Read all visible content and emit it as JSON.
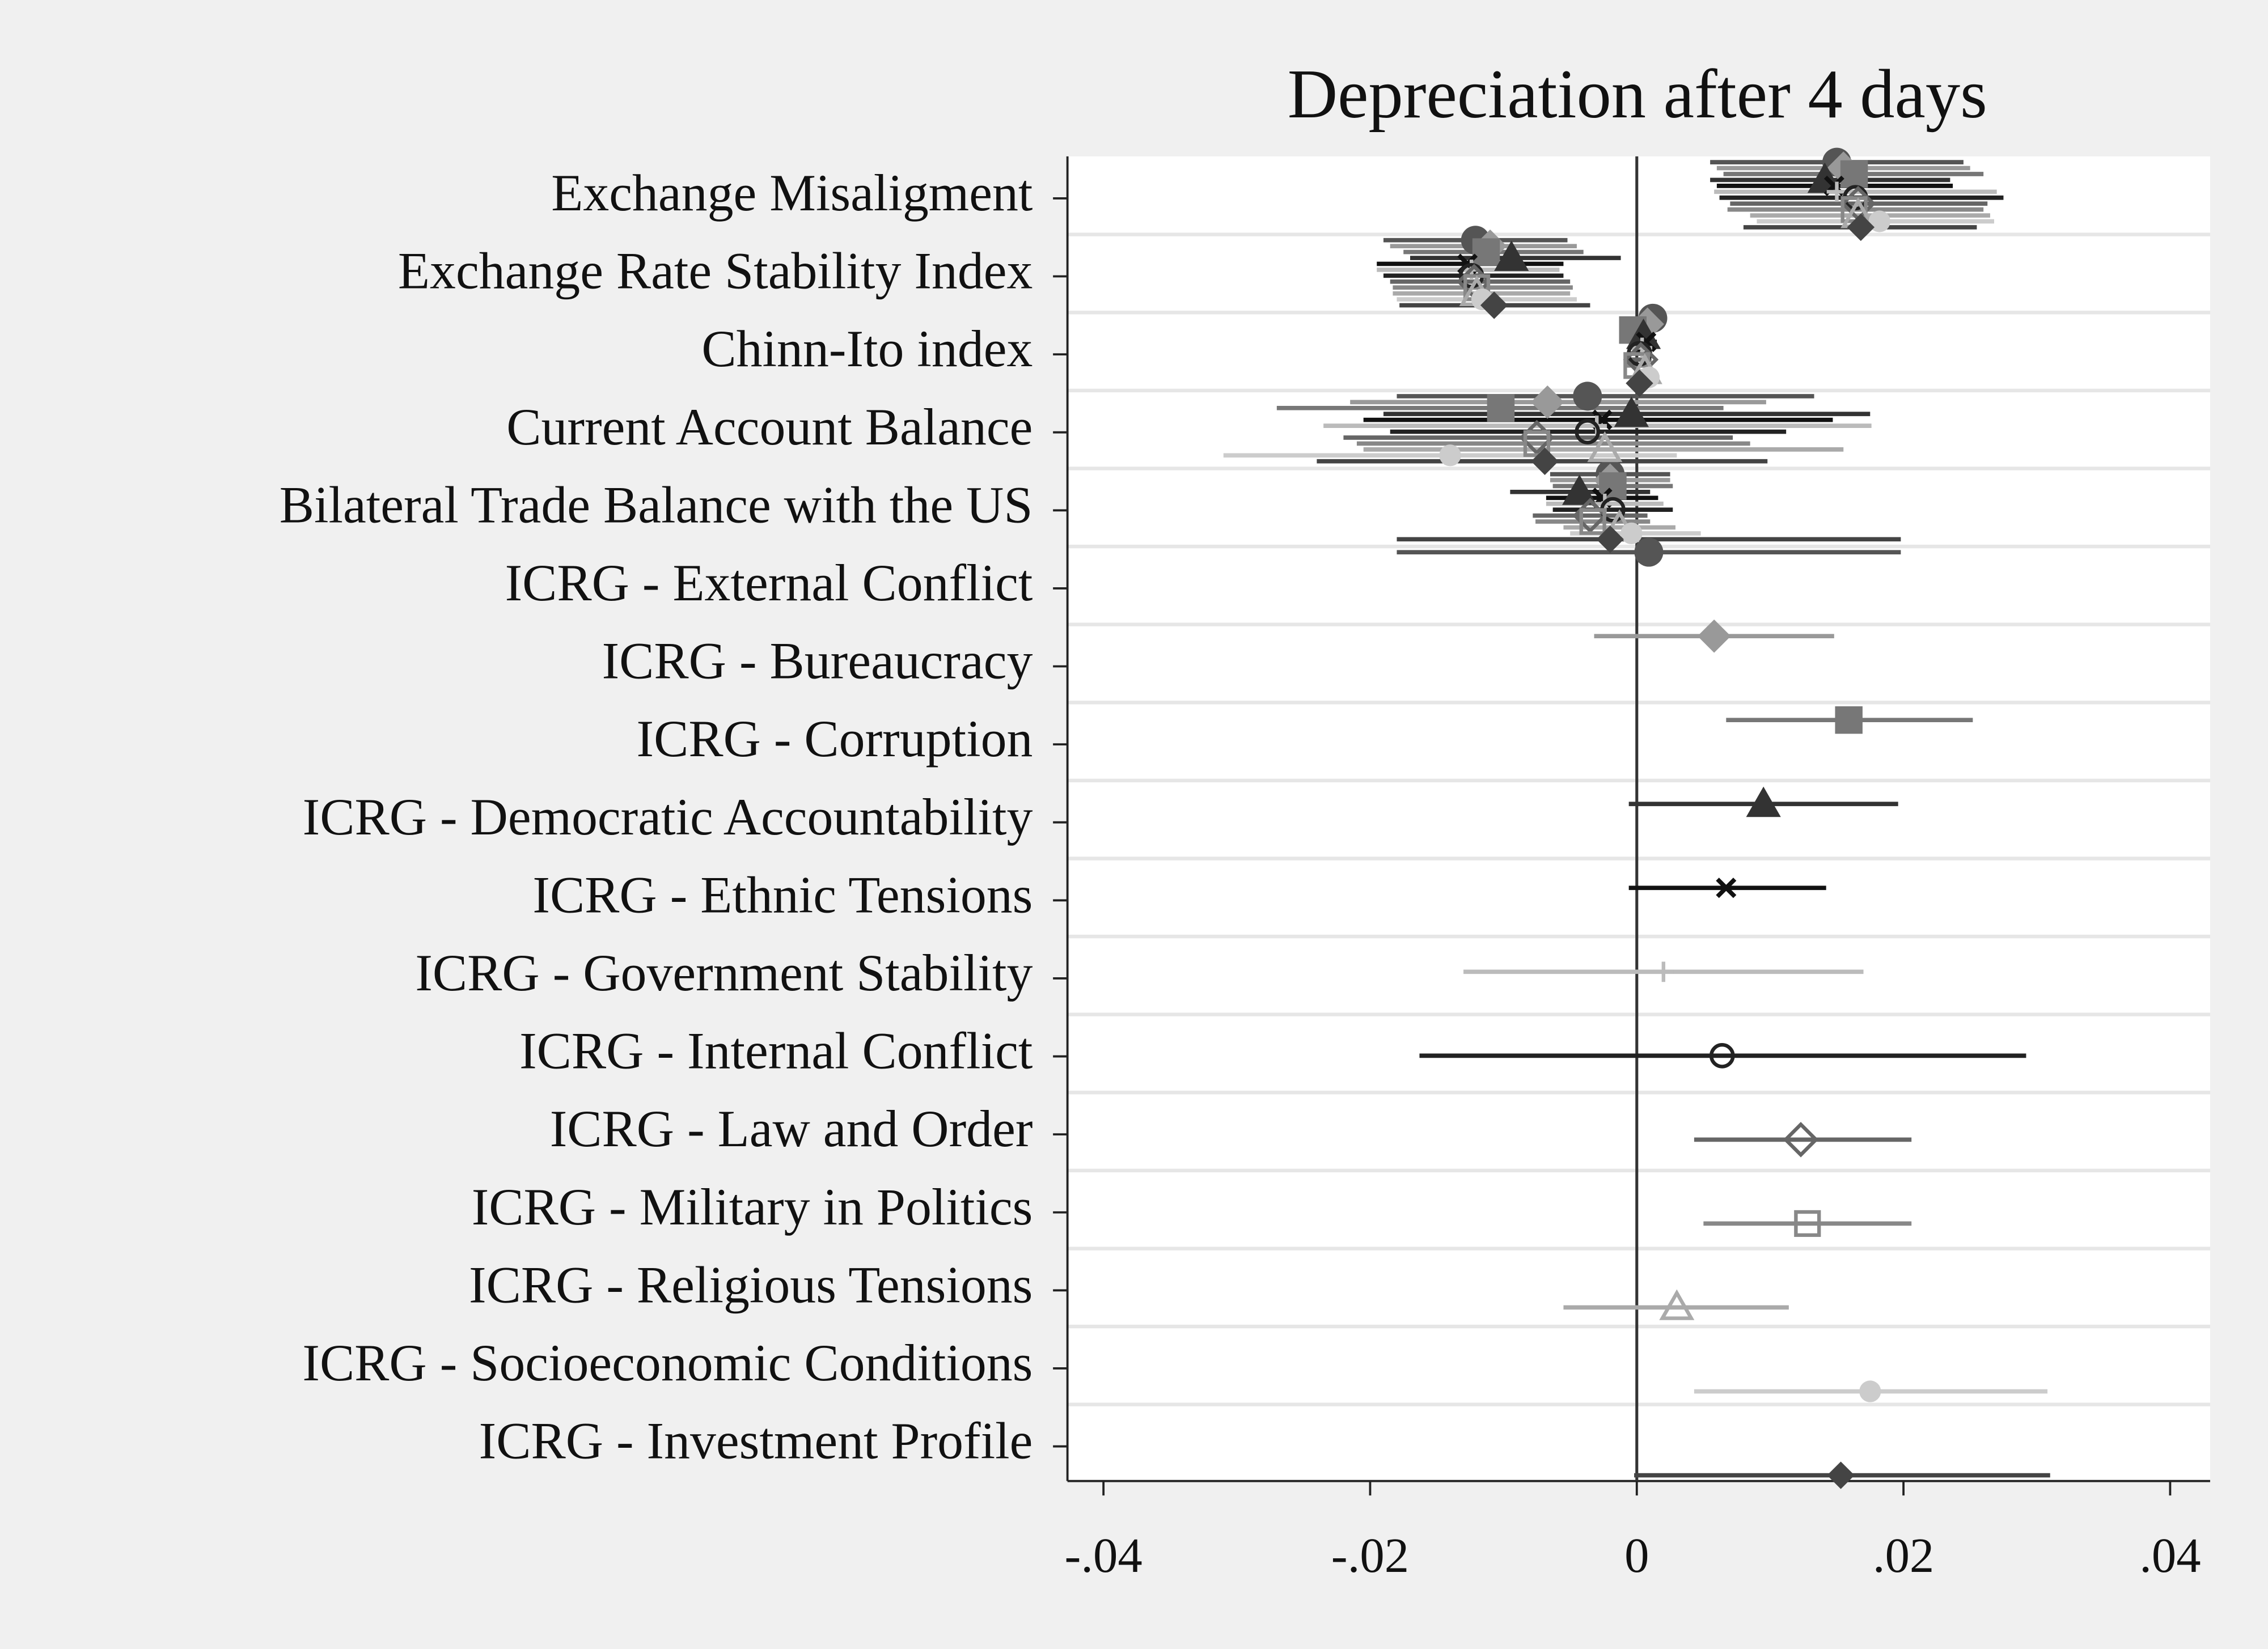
{
  "chart_data": {
    "type": "coefplot",
    "title": "Depreciation after 4 days",
    "categories": [
      "Exchange Misaligment",
      "Exchange Rate Stability Index",
      "Chinn-Ito index",
      "Current Account Balance",
      "Bilateral Trade Balance with the US",
      "ICRG - External Conflict",
      "ICRG - Bureaucracy",
      "ICRG - Corruption",
      "ICRG - Democratic Accountability",
      "ICRG - Ethnic Tensions",
      "ICRG - Government Stability",
      "ICRG - Internal Conflict",
      "ICRG - Law and Order",
      "ICRG - Military in Politics",
      "ICRG - Religious Tensions",
      "ICRG - Socioeconomic Conditions",
      "ICRG - Investment Profile"
    ],
    "xlim": [
      -0.0427,
      0.043
    ],
    "xticks": [
      {
        "value": -0.04,
        "label": "-.04"
      },
      {
        "value": -0.02,
        "label": "-.02"
      },
      0,
      {
        "value": 0.02,
        "label": ".02"
      },
      {
        "value": 0.04,
        "label": ".04"
      }
    ],
    "zero_line": true,
    "grid": true,
    "series": [
      {
        "color": "#555555",
        "marker": "circle",
        "hollow": false,
        "values": [
          0.015,
          -0.0121,
          0.0012,
          -0.0037,
          -0.002,
          0.0009,
          null,
          null,
          null,
          null,
          null,
          null,
          null,
          null,
          null,
          null,
          null
        ],
        "ci_low": [
          0.0055,
          -0.019,
          0.0004,
          -0.018,
          -0.0065,
          -0.018,
          null,
          null,
          null,
          null,
          null,
          null,
          null,
          null,
          null,
          null,
          null
        ],
        "ci_high": [
          0.0245,
          -0.0052,
          0.002,
          0.0133,
          0.0025,
          0.0198,
          null,
          null,
          null,
          null,
          null,
          null,
          null,
          null,
          null,
          null,
          null
        ]
      },
      {
        "color": "#999999",
        "marker": "diamond",
        "hollow": false,
        "values": [
          0.0155,
          -0.011,
          0.0008,
          -0.0067,
          -0.002,
          null,
          0.0058,
          null,
          null,
          null,
          null,
          null,
          null,
          null,
          null,
          null,
          null
        ],
        "ci_low": [
          0.006,
          -0.0185,
          0,
          -0.0215,
          -0.0065,
          null,
          -0.0032,
          null,
          null,
          null,
          null,
          null,
          null,
          null,
          null,
          null,
          null
        ],
        "ci_high": [
          0.025,
          -0.0045,
          0.0016,
          0.0097,
          0.0025,
          null,
          0.0148,
          null,
          null,
          null,
          null,
          null,
          null,
          null,
          null,
          null,
          null
        ]
      },
      {
        "color": "#777777",
        "marker": "square",
        "hollow": false,
        "values": [
          0.0163,
          -0.0113,
          -0.0003,
          -0.0102,
          -0.0018,
          null,
          null,
          0.0159,
          null,
          null,
          null,
          null,
          null,
          null,
          null,
          null,
          null
        ],
        "ci_low": [
          0.0065,
          -0.0175,
          -0.0011,
          -0.027,
          -0.0063,
          null,
          null,
          0.0067,
          null,
          null,
          null,
          null,
          null,
          null,
          null,
          null,
          null
        ],
        "ci_high": [
          0.026,
          -0.004,
          0.0005,
          0.0065,
          0.0027,
          null,
          null,
          0.0252,
          null,
          null,
          null,
          null,
          null,
          null,
          null,
          null,
          null
        ]
      },
      {
        "color": "#333333",
        "marker": "triangle",
        "hollow": false,
        "values": [
          0.0141,
          -0.0094,
          0.0005,
          -0.0004,
          -0.0043,
          null,
          null,
          null,
          0.0095,
          null,
          null,
          null,
          null,
          null,
          null,
          null,
          null
        ],
        "ci_low": [
          0.0055,
          -0.017,
          -0.0003,
          -0.019,
          -0.0095,
          null,
          null,
          null,
          -0.0006,
          null,
          null,
          null,
          null,
          null,
          null,
          null,
          null
        ],
        "ci_high": [
          0.0235,
          -0.0012,
          0.0013,
          0.0175,
          0.001,
          null,
          null,
          null,
          0.0196,
          null,
          null,
          null,
          null,
          null,
          null,
          null,
          null
        ]
      },
      {
        "color": "#111111",
        "marker": "x",
        "hollow": false,
        "values": [
          0.0148,
          -0.0127,
          0.0007,
          -0.0026,
          -0.0026,
          null,
          null,
          null,
          null,
          0.0067,
          null,
          null,
          null,
          null,
          null,
          null,
          null
        ],
        "ci_low": [
          0.006,
          -0.0195,
          -0.0001,
          -0.0205,
          -0.0068,
          null,
          null,
          null,
          null,
          -0.0006,
          null,
          null,
          null,
          null,
          null,
          null,
          null
        ],
        "ci_high": [
          0.0237,
          -0.0055,
          0.0015,
          0.0147,
          0.0016,
          null,
          null,
          null,
          null,
          0.0142,
          null,
          null,
          null,
          null,
          null,
          null,
          null
        ]
      },
      {
        "color": "#bbbbbb",
        "marker": "plus",
        "hollow": false,
        "values": [
          0.015,
          -0.0124,
          0.0004,
          -0.003,
          -0.0024,
          null,
          null,
          null,
          null,
          null,
          0.002,
          null,
          null,
          null,
          null,
          null,
          null
        ],
        "ci_low": [
          0.0058,
          -0.0195,
          -0.0004,
          -0.0235,
          -0.0068,
          null,
          null,
          null,
          null,
          null,
          -0.013,
          null,
          null,
          null,
          null,
          null,
          null
        ],
        "ci_high": [
          0.027,
          -0.0058,
          0.0012,
          0.0176,
          0.002,
          null,
          null,
          null,
          null,
          null,
          0.017,
          null,
          null,
          null,
          null,
          null,
          null
        ]
      },
      {
        "color": "#222222",
        "marker": "circle",
        "hollow": true,
        "values": [
          0.0164,
          -0.0124,
          0.0002,
          -0.0037,
          -0.0018,
          null,
          null,
          null,
          null,
          null,
          null,
          0.0064,
          null,
          null,
          null,
          null,
          null
        ],
        "ci_low": [
          0.0062,
          -0.019,
          -0.0006,
          -0.0185,
          -0.0063,
          null,
          null,
          null,
          null,
          null,
          null,
          -0.0163,
          null,
          null,
          null,
          null,
          null
        ],
        "ci_high": [
          0.0275,
          -0.0055,
          0.001,
          0.0112,
          0.0027,
          null,
          null,
          null,
          null,
          null,
          null,
          0.0292,
          null,
          null,
          null,
          null,
          null
        ]
      },
      {
        "color": "#666666",
        "marker": "diamond",
        "hollow": true,
        "values": [
          0.0166,
          -0.0122,
          0.0003,
          -0.0075,
          -0.0035,
          null,
          null,
          null,
          null,
          null,
          null,
          null,
          0.0123,
          null,
          null,
          null,
          null
        ],
        "ci_low": [
          0.007,
          -0.0185,
          -0.0005,
          -0.022,
          -0.0078,
          null,
          null,
          null,
          null,
          null,
          null,
          null,
          0.0043,
          null,
          null,
          null,
          null
        ],
        "ci_high": [
          0.0263,
          -0.005,
          0.0011,
          0.0072,
          0.0008,
          null,
          null,
          null,
          null,
          null,
          null,
          null,
          0.0206,
          null,
          null,
          null,
          null
        ]
      },
      {
        "color": "#888888",
        "marker": "square",
        "hollow": true,
        "values": [
          0.0163,
          -0.012,
          0,
          -0.0075,
          -0.0033,
          null,
          null,
          null,
          null,
          null,
          null,
          null,
          null,
          0.0128,
          null,
          null,
          null
        ],
        "ci_low": [
          0.0068,
          -0.0183,
          -0.0008,
          -0.021,
          -0.0076,
          null,
          null,
          null,
          null,
          null,
          null,
          null,
          null,
          0.005,
          null,
          null,
          null
        ],
        "ci_high": [
          0.026,
          -0.0048,
          0.0008,
          0.0085,
          0.001,
          null,
          null,
          null,
          null,
          null,
          null,
          null,
          null,
          0.0206,
          null,
          null,
          null
        ]
      },
      {
        "color": "#aaaaaa",
        "marker": "triangle",
        "hollow": true,
        "values": [
          0.0166,
          -0.012,
          0.0006,
          -0.0024,
          -0.0013,
          null,
          null,
          null,
          null,
          null,
          null,
          null,
          null,
          null,
          0.003,
          null,
          null
        ],
        "ci_low": [
          0.0085,
          -0.0183,
          -0.0002,
          -0.0205,
          -0.0055,
          null,
          null,
          null,
          null,
          null,
          null,
          null,
          null,
          null,
          -0.0055,
          null,
          null
        ],
        "ci_high": [
          0.0265,
          -0.005,
          0.0014,
          0.0155,
          0.0029,
          null,
          null,
          null,
          null,
          null,
          null,
          null,
          null,
          null,
          0.0114,
          null,
          null
        ]
      },
      {
        "color": "#cccccc",
        "marker": "dot",
        "hollow": false,
        "values": [
          0.0182,
          -0.0116,
          0.0009,
          -0.014,
          -0.0004,
          null,
          null,
          null,
          null,
          null,
          null,
          null,
          null,
          null,
          null,
          0.0175,
          null
        ],
        "ci_low": [
          0.009,
          -0.018,
          0.0001,
          -0.031,
          -0.005,
          null,
          null,
          null,
          null,
          null,
          null,
          null,
          null,
          null,
          null,
          0.0043,
          null
        ],
        "ci_high": [
          0.0268,
          -0.0045,
          0.0017,
          0.003,
          0.0048,
          null,
          null,
          null,
          null,
          null,
          null,
          null,
          null,
          null,
          null,
          0.0308,
          null
        ]
      },
      {
        "color": "#444444",
        "marker": "diamond",
        "hollow": false,
        "small": true,
        "values": [
          0.0168,
          -0.0107,
          0.0002,
          -0.0069,
          -0.002,
          null,
          null,
          null,
          null,
          null,
          null,
          null,
          null,
          null,
          null,
          null,
          0.0153
        ],
        "ci_low": [
          0.008,
          -0.0178,
          -0.0006,
          -0.024,
          -0.018,
          null,
          null,
          null,
          null,
          null,
          null,
          null,
          null,
          null,
          null,
          null,
          -0.0002
        ],
        "ci_high": [
          0.0255,
          -0.0035,
          0.001,
          0.0098,
          0.0198,
          null,
          null,
          null,
          null,
          null,
          null,
          null,
          null,
          null,
          null,
          null,
          0.031
        ]
      }
    ]
  }
}
